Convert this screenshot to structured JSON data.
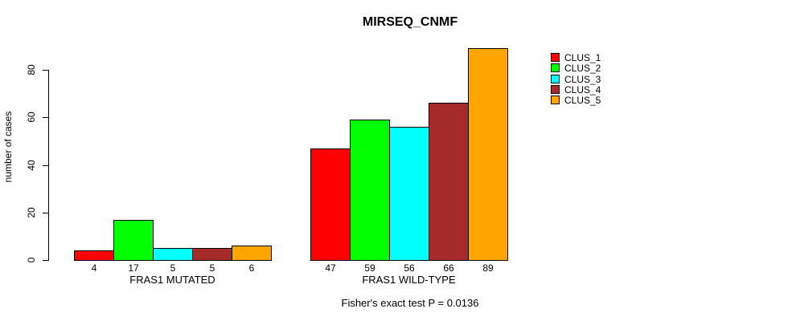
{
  "chart_data": {
    "type": "bar",
    "title": "MIRSEQ_CNMF",
    "subtitle": "Fisher's exact test P = 0.0136",
    "xlabel": "",
    "ylabel": "number of cases",
    "categories": [
      "FRAS1 MUTATED",
      "FRAS1 WILD-TYPE"
    ],
    "series": [
      {
        "name": "CLUS_1",
        "color": "#ff0000",
        "values": [
          4,
          47
        ]
      },
      {
        "name": "CLUS_2",
        "color": "#00ff00",
        "values": [
          17,
          59
        ]
      },
      {
        "name": "CLUS_3",
        "color": "#00ffff",
        "values": [
          5,
          56
        ]
      },
      {
        "name": "CLUS_4",
        "color": "#a52a2a",
        "values": [
          5,
          66
        ]
      },
      {
        "name": "CLUS_5",
        "color": "#ffa500",
        "values": [
          6,
          89
        ]
      }
    ],
    "bar_value_labels": [
      [
        4,
        17,
        5,
        5,
        6
      ],
      [
        47,
        59,
        56,
        66,
        89
      ]
    ],
    "y_ticks": [
      0,
      20,
      40,
      60,
      80
    ],
    "ylim": [
      0,
      89
    ],
    "grid": false,
    "legend_position": "right",
    "legend_entries": [
      "CLUS_1",
      "CLUS_2",
      "CLUS_3",
      "CLUS_4",
      "CLUS_5"
    ],
    "axis_color": "#000000",
    "bar_border_color": "#000000",
    "background_color": "#ffffff"
  }
}
